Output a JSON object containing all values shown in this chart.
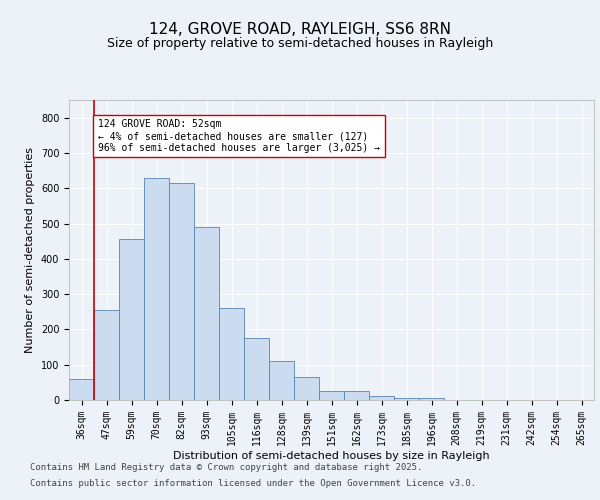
{
  "title": "124, GROVE ROAD, RAYLEIGH, SS6 8RN",
  "subtitle": "Size of property relative to semi-detached houses in Rayleigh",
  "xlabel": "Distribution of semi-detached houses by size in Rayleigh",
  "ylabel": "Number of semi-detached properties",
  "categories": [
    "36sqm",
    "47sqm",
    "59sqm",
    "70sqm",
    "82sqm",
    "93sqm",
    "105sqm",
    "116sqm",
    "128sqm",
    "139sqm",
    "151sqm",
    "162sqm",
    "173sqm",
    "185sqm",
    "196sqm",
    "208sqm",
    "219sqm",
    "231sqm",
    "242sqm",
    "254sqm",
    "265sqm"
  ],
  "bar_heights": [
    60,
    255,
    455,
    630,
    615,
    490,
    260,
    175,
    110,
    65,
    25,
    25,
    10,
    5,
    7,
    0,
    0,
    0,
    0,
    0,
    0
  ],
  "bar_color": "#ccdcf0",
  "bar_edge_color": "#5585b5",
  "vline_color": "#cc0000",
  "vline_x_index": 1,
  "annotation_text": "124 GROVE ROAD: 52sqm\n← 4% of semi-detached houses are smaller (127)\n96% of semi-detached houses are larger (3,025) →",
  "annotation_box_facecolor": "#ffffff",
  "annotation_box_edgecolor": "#cc0000",
  "ylim": [
    0,
    850
  ],
  "yticks": [
    0,
    100,
    200,
    300,
    400,
    500,
    600,
    700,
    800
  ],
  "footer_line1": "Contains HM Land Registry data © Crown copyright and database right 2025.",
  "footer_line2": "Contains public sector information licensed under the Open Government Licence v3.0.",
  "bg_color": "#edf1f8",
  "plot_bg_color": "#edf1f8",
  "grid_color": "#ffffff",
  "title_fontsize": 11,
  "subtitle_fontsize": 9,
  "axis_label_fontsize": 8,
  "tick_fontsize": 7,
  "annotation_fontsize": 7,
  "footer_fontsize": 6.5
}
